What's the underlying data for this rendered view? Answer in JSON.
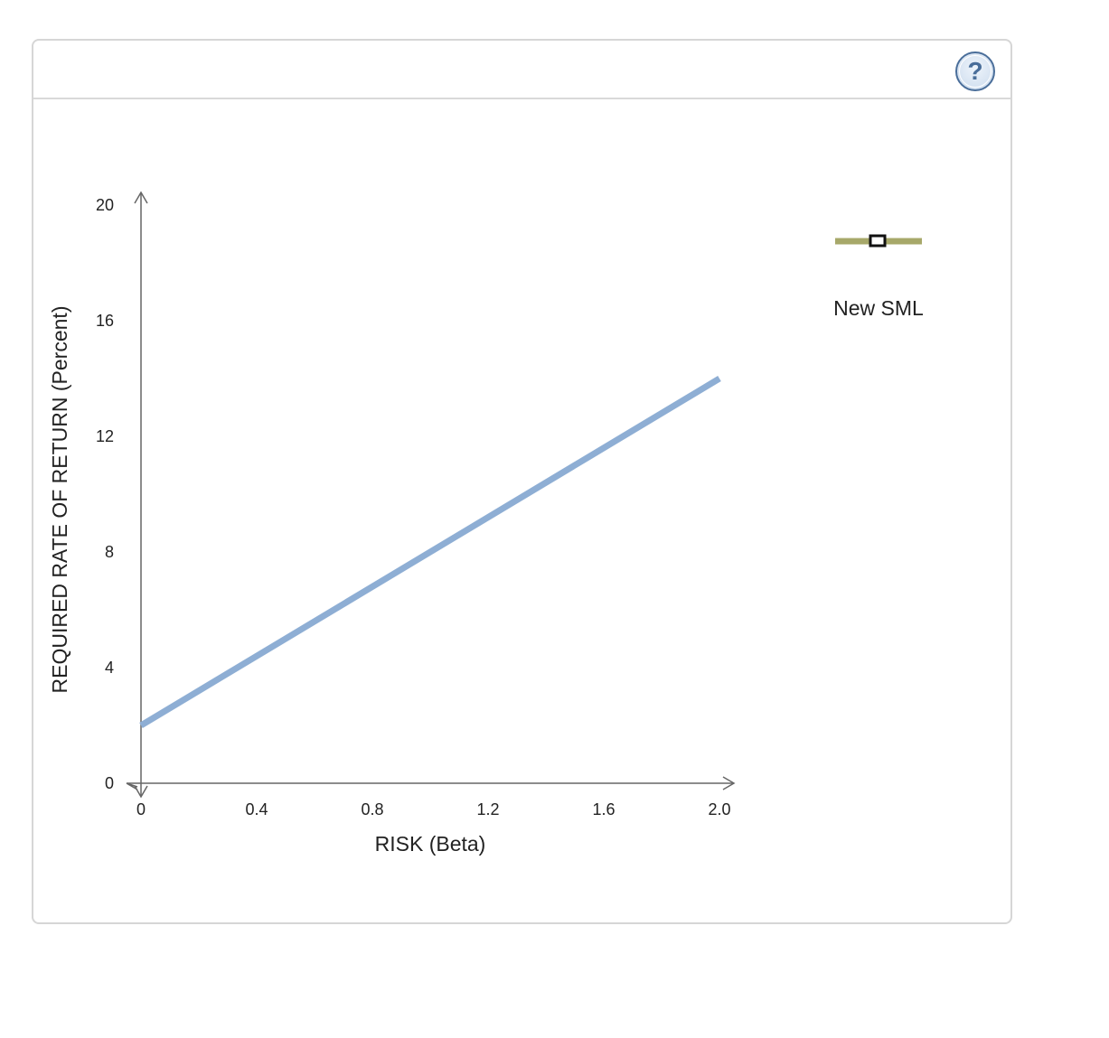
{
  "help": {
    "icon": "question-mark-icon",
    "symbol": "?"
  },
  "chart_data": {
    "type": "line",
    "xlabel": "RISK (Beta)",
    "ylabel": "REQUIRED RATE OF RETURN (Percent)",
    "xlim": [
      0,
      2.0
    ],
    "ylim": [
      0,
      20
    ],
    "x_ticks": [
      "0",
      "0.4",
      "0.8",
      "1.2",
      "1.6",
      "2.0"
    ],
    "y_ticks": [
      "0",
      "4",
      "8",
      "12",
      "16",
      "20"
    ],
    "series": [
      {
        "x": [
          0,
          2.0
        ],
        "y": [
          2,
          14
        ],
        "color": "#8eaed4"
      }
    ],
    "legend": {
      "entries": [
        {
          "name": "New SML",
          "color": "#a7a86a",
          "marker": "square"
        }
      ],
      "placement": "right"
    },
    "grid": false
  }
}
